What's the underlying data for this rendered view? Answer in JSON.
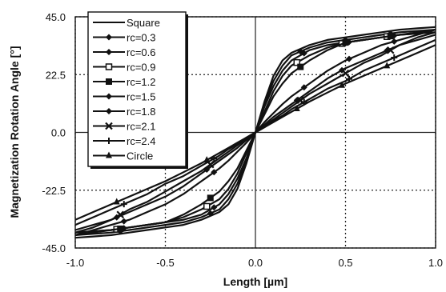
{
  "chart_data": {
    "type": "line",
    "title": "",
    "xlabel": "Length [µm]",
    "ylabel": "Magnetization Rotation Angle [°]",
    "xlim": [
      -1.0,
      1.0
    ],
    "ylim": [
      -45.0,
      45.0
    ],
    "x_ticks": [
      "-1.0",
      "-0.5",
      "0.0",
      "0.5",
      "1.0"
    ],
    "y_ticks": [
      "45.0",
      "22.5",
      "0.0",
      "-22.5",
      "-45.0"
    ],
    "x_tick_values": [
      -1.0,
      -0.5,
      0.0,
      0.5,
      1.0
    ],
    "y_tick_values": [
      45.0,
      22.5,
      0.0,
      -22.5,
      -45.0
    ],
    "grid": true,
    "legend_position": "top-left",
    "x": [
      -1.0,
      -0.9,
      -0.8,
      -0.7,
      -0.6,
      -0.5,
      -0.4,
      -0.3,
      -0.2,
      -0.15,
      -0.1,
      -0.05,
      0.0,
      0.05,
      0.1,
      0.15,
      0.2,
      0.3,
      0.4,
      0.5,
      0.6,
      0.7,
      0.8,
      0.9,
      1.0
    ],
    "series": [
      {
        "name": "Square",
        "marker": "none",
        "values": [
          -41,
          -40.5,
          -40,
          -39,
          -38,
          -37,
          -36,
          -34,
          -31,
          -28,
          -22,
          -12,
          0,
          12,
          22,
          28,
          31,
          34,
          36,
          37,
          38,
          39,
          40,
          40.5,
          41
        ]
      },
      {
        "name": "rc=0.3",
        "marker": "diamond",
        "values": [
          -40,
          -39.5,
          -39,
          -38,
          -37,
          -36,
          -35,
          -33,
          -30,
          -26,
          -20,
          -11,
          0,
          11,
          20,
          26,
          30,
          33,
          35,
          36,
          37,
          38,
          39,
          39.5,
          40
        ]
      },
      {
        "name": "rc=0.6",
        "marker": "diamond",
        "values": [
          -39,
          -38.5,
          -38,
          -37,
          -36,
          -35,
          -34,
          -32,
          -28,
          -24,
          -18,
          -10,
          0,
          10,
          18,
          24,
          28,
          32,
          34,
          35,
          36,
          37,
          38,
          38.5,
          39
        ]
      },
      {
        "name": "rc=0.9",
        "marker": "open-square",
        "values": [
          -39,
          -38.5,
          -38,
          -37,
          -36,
          -35,
          -33,
          -30,
          -26,
          -22,
          -16,
          -8,
          0,
          8,
          16,
          22,
          26,
          30,
          33,
          35,
          36,
          37,
          38,
          38.5,
          39
        ]
      },
      {
        "name": "rc=1.2",
        "marker": "filled-square",
        "values": [
          -40,
          -39,
          -38,
          -37,
          -36,
          -35,
          -32,
          -28,
          -23,
          -19,
          -14,
          -7,
          0,
          7,
          14,
          19,
          23,
          28,
          32,
          35,
          36,
          37,
          38,
          39,
          40
        ]
      },
      {
        "name": "rc=1.5",
        "marker": "diamond",
        "values": [
          -40,
          -38,
          -36,
          -34,
          -31,
          -28,
          -24,
          -19,
          -14,
          -11,
          -7.5,
          -4,
          0,
          4,
          7.5,
          11,
          14,
          19,
          24,
          28,
          31,
          34,
          36,
          38,
          40
        ]
      },
      {
        "name": "rc=1.8",
        "marker": "diamond",
        "values": [
          -39,
          -37,
          -34,
          -31,
          -28,
          -25,
          -21,
          -16,
          -11,
          -8.5,
          -6,
          -3,
          0,
          3,
          6,
          8.5,
          11,
          16,
          21,
          25,
          28,
          31,
          34,
          37,
          39
        ]
      },
      {
        "name": "rc=2.1",
        "marker": "x",
        "values": [
          -38,
          -36,
          -34,
          -30,
          -27,
          -23,
          -19,
          -15,
          -10,
          -7.5,
          -5,
          -2.5,
          0,
          2.5,
          5,
          7.5,
          10,
          15,
          19,
          23,
          27,
          30,
          34,
          36,
          38
        ]
      },
      {
        "name": "rc=2.4",
        "marker": "plus",
        "values": [
          -36,
          -33,
          -30,
          -27,
          -24,
          -20,
          -17,
          -13,
          -9,
          -6.5,
          -4.5,
          -2,
          0,
          2,
          4.5,
          6.5,
          9,
          13,
          17,
          20,
          24,
          27,
          30,
          33,
          36
        ]
      },
      {
        "name": "Circle",
        "marker": "triangle",
        "values": [
          -34,
          -31,
          -28,
          -25,
          -22,
          -19,
          -15.5,
          -12,
          -8,
          -6,
          -4,
          -2,
          0,
          2,
          4,
          6,
          8,
          12,
          15.5,
          19,
          22,
          25,
          28,
          31,
          34
        ]
      }
    ],
    "marker_x": [
      -0.75,
      -0.25,
      0.25,
      0.5,
      0.75
    ]
  }
}
